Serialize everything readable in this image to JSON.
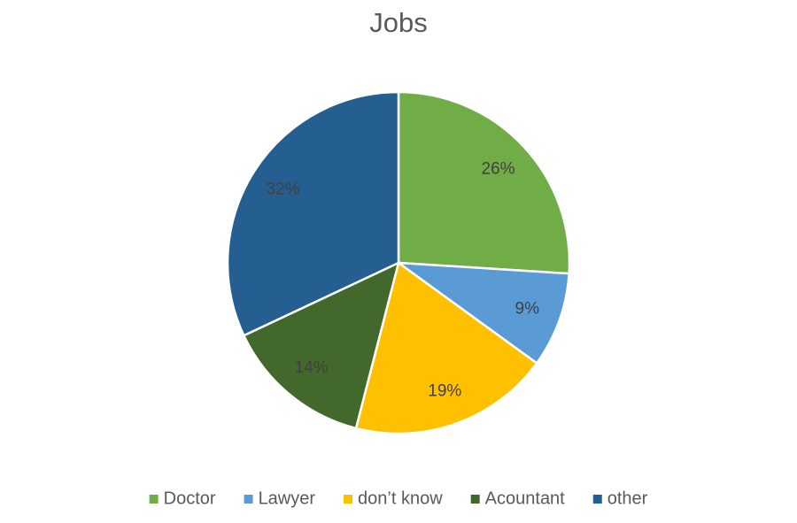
{
  "chart_data": {
    "type": "pie",
    "title": "Jobs",
    "categories": [
      "Doctor",
      "Lawyer",
      "don’t know",
      "Acountant",
      "other"
    ],
    "values": [
      26,
      9,
      19,
      14,
      32
    ],
    "value_labels": [
      "26%",
      "9%",
      "19%",
      "14%",
      "32%"
    ],
    "colors": [
      "#70ad47",
      "#5b9bd5",
      "#ffc000",
      "#43682b",
      "#255e91"
    ],
    "legend": "bottom"
  }
}
